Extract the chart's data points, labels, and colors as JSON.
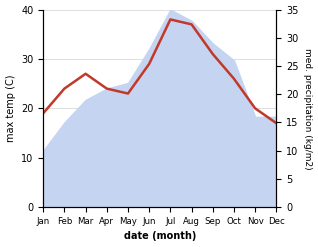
{
  "months": [
    "Jan",
    "Feb",
    "Mar",
    "Apr",
    "May",
    "Jun",
    "Jul",
    "Aug",
    "Sep",
    "Oct",
    "Nov",
    "Dec"
  ],
  "temperature": [
    19,
    24,
    27,
    24,
    23,
    29,
    38,
    37,
    31,
    26,
    20,
    17
  ],
  "precipitation": [
    10,
    15,
    19,
    21,
    22,
    28,
    35,
    33,
    29,
    26,
    16,
    16
  ],
  "temp_color": "#c0392b",
  "precip_color": "#c5d4f0",
  "left_ylabel": "max temp (C)",
  "right_ylabel": "med. precipitation (kg/m2)",
  "xlabel": "date (month)",
  "left_ylim": [
    0,
    40
  ],
  "right_ylim": [
    0,
    35
  ],
  "left_yticks": [
    0,
    10,
    20,
    30,
    40
  ],
  "right_yticks": [
    0,
    5,
    10,
    15,
    20,
    25,
    30,
    35
  ],
  "background_color": "#ffffff",
  "grid_color": "#d0d0d0"
}
